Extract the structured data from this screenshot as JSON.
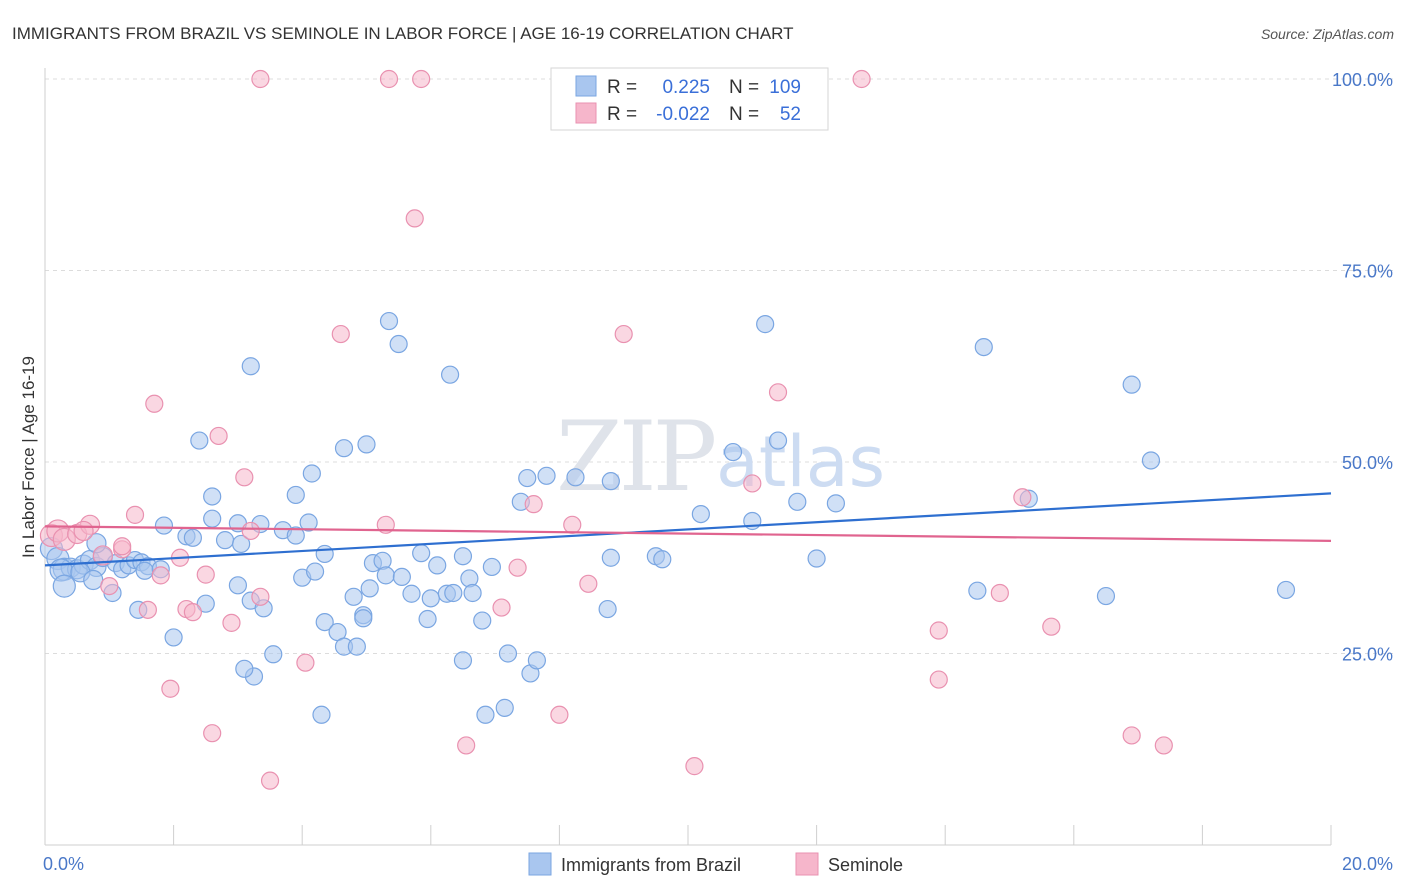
{
  "chart_data": {
    "type": "scatter",
    "title": "IMMIGRANTS FROM BRAZIL VS SEMINOLE IN LABOR FORCE | AGE 16-19 CORRELATION CHART",
    "source": "Source: ZipAtlas.com",
    "watermark": {
      "zip": "ZIP",
      "atlas": "atlas"
    },
    "xlabel": "",
    "ylabel": "In Labor Force | Age 16-19",
    "xlim": [
      0,
      20
    ],
    "ylim": [
      0,
      104
    ],
    "x_tick_labels": [
      {
        "value": 0,
        "label": "0.0%"
      },
      {
        "value": 20,
        "label": "20.0%"
      }
    ],
    "x_tick_marks": [
      0,
      2,
      4,
      6,
      8,
      10,
      12,
      14,
      16,
      18,
      20
    ],
    "y_ticks": [
      {
        "value": 25,
        "label": "25.0%"
      },
      {
        "value": 50,
        "label": "50.0%"
      },
      {
        "value": 75,
        "label": "75.0%"
      },
      {
        "value": 100,
        "label": "100.0%"
      }
    ],
    "grid": true,
    "legend": {
      "position": "top-center",
      "rows": [
        {
          "r_label": "R =",
          "r_value": "0.225",
          "n_label": "N =",
          "n_value": "109",
          "color": "#a9c6ef"
        },
        {
          "r_label": "R =",
          "r_value": "-0.022",
          "n_label": "N =",
          "n_value": "52",
          "color": "#f6b6cb"
        }
      ]
    },
    "series": [
      {
        "name": "Immigrants from Brazil",
        "color": "#a9c6ef",
        "stroke": "#7aa6e2",
        "trend_color": "#2e6fd0",
        "trend": [
          [
            0,
            36.5
          ],
          [
            20,
            45.9
          ]
        ],
        "points": [
          [
            0.1,
            38.7
          ],
          [
            0.2,
            37.4
          ],
          [
            0.3,
            36.0
          ],
          [
            0.4,
            36.2
          ],
          [
            0.5,
            36.0
          ],
          [
            0.6,
            36.6
          ],
          [
            0.7,
            37.2
          ],
          [
            0.8,
            36.3
          ],
          [
            0.9,
            37.6
          ],
          [
            1.1,
            36.8
          ],
          [
            1.2,
            36.0
          ],
          [
            1.3,
            36.5
          ],
          [
            1.4,
            37.2
          ],
          [
            1.5,
            36.9
          ],
          [
            1.6,
            36.4
          ],
          [
            0.25,
            35.9
          ],
          [
            0.3,
            33.8
          ],
          [
            0.55,
            35.6
          ],
          [
            0.75,
            34.6
          ],
          [
            1.05,
            32.9
          ],
          [
            1.55,
            35.8
          ],
          [
            1.8,
            36.0
          ],
          [
            0.8,
            39.4
          ],
          [
            1.45,
            30.7
          ],
          [
            1.85,
            41.7
          ],
          [
            2.2,
            40.3
          ],
          [
            2.6,
            42.6
          ],
          [
            3.0,
            42.0
          ],
          [
            3.35,
            41.9
          ],
          [
            3.7,
            41.1
          ],
          [
            3.9,
            40.4
          ],
          [
            4.1,
            42.1
          ],
          [
            2.3,
            40.1
          ],
          [
            2.8,
            39.8
          ],
          [
            3.05,
            39.3
          ],
          [
            2.6,
            45.5
          ],
          [
            3.9,
            45.7
          ],
          [
            4.15,
            48.5
          ],
          [
            2.0,
            27.1
          ],
          [
            2.5,
            31.5
          ],
          [
            3.0,
            33.9
          ],
          [
            3.2,
            31.9
          ],
          [
            3.4,
            30.9
          ],
          [
            3.55,
            24.9
          ],
          [
            3.25,
            22.0
          ],
          [
            4.0,
            34.9
          ],
          [
            4.2,
            35.7
          ],
          [
            4.35,
            38.0
          ],
          [
            4.35,
            29.1
          ],
          [
            4.55,
            27.8
          ],
          [
            4.65,
            25.9
          ],
          [
            4.8,
            32.4
          ],
          [
            4.95,
            30.0
          ],
          [
            4.95,
            29.6
          ],
          [
            5.05,
            33.5
          ],
          [
            5.1,
            36.8
          ],
          [
            5.25,
            37.1
          ],
          [
            5.3,
            35.2
          ],
          [
            5.55,
            35.0
          ],
          [
            5.7,
            32.8
          ],
          [
            5.85,
            38.1
          ],
          [
            5.95,
            29.5
          ],
          [
            6.0,
            32.2
          ],
          [
            6.25,
            32.8
          ],
          [
            6.35,
            32.9
          ],
          [
            6.1,
            36.5
          ],
          [
            6.5,
            37.7
          ],
          [
            6.5,
            24.1
          ],
          [
            6.6,
            34.8
          ],
          [
            6.65,
            32.9
          ],
          [
            6.8,
            29.3
          ],
          [
            6.85,
            17.0
          ],
          [
            6.95,
            36.3
          ],
          [
            7.15,
            17.9
          ],
          [
            7.2,
            25.0
          ],
          [
            7.55,
            22.4
          ],
          [
            7.65,
            24.1
          ],
          [
            7.4,
            44.8
          ],
          [
            7.5,
            47.9
          ],
          [
            7.8,
            48.2
          ],
          [
            8.25,
            48.0
          ],
          [
            8.75,
            30.8
          ],
          [
            8.8,
            37.5
          ],
          [
            9.5,
            37.7
          ],
          [
            9.6,
            37.3
          ],
          [
            10.2,
            43.2
          ],
          [
            10.7,
            51.3
          ],
          [
            11.0,
            42.3
          ],
          [
            11.4,
            52.8
          ],
          [
            11.7,
            44.8
          ],
          [
            12.0,
            37.4
          ],
          [
            4.85,
            25.9
          ],
          [
            5.5,
            65.4
          ],
          [
            6.3,
            61.4
          ],
          [
            4.3,
            17.0
          ],
          [
            5.0,
            52.3
          ],
          [
            3.2,
            62.5
          ],
          [
            5.35,
            68.4
          ],
          [
            11.2,
            68.0
          ],
          [
            14.6,
            65.0
          ],
          [
            15.3,
            45.2
          ],
          [
            16.9,
            60.1
          ],
          [
            17.2,
            50.2
          ],
          [
            14.5,
            33.2
          ],
          [
            16.5,
            32.5
          ],
          [
            19.3,
            33.3
          ],
          [
            3.1,
            23.0
          ],
          [
            4.65,
            51.8
          ],
          [
            2.4,
            52.8
          ],
          [
            8.8,
            47.5
          ],
          [
            12.3,
            44.6
          ]
        ],
        "point_sizes_note": "larger markers near x=0"
      },
      {
        "name": "Seminole",
        "color": "#f6b6cb",
        "stroke": "#e991b0",
        "trend_color": "#e0648f",
        "trend": [
          [
            0,
            41.6
          ],
          [
            20,
            39.7
          ]
        ],
        "points": [
          [
            0.1,
            40.4
          ],
          [
            0.2,
            41.0
          ],
          [
            0.3,
            39.9
          ],
          [
            0.5,
            40.6
          ],
          [
            0.7,
            41.8
          ],
          [
            0.9,
            37.8
          ],
          [
            1.0,
            33.8
          ],
          [
            1.2,
            38.6
          ],
          [
            1.4,
            43.1
          ],
          [
            1.6,
            30.7
          ],
          [
            1.7,
            57.6
          ],
          [
            1.8,
            35.2
          ],
          [
            2.1,
            37.5
          ],
          [
            2.2,
            30.8
          ],
          [
            1.95,
            20.4
          ],
          [
            2.3,
            30.4
          ],
          [
            2.5,
            35.3
          ],
          [
            2.6,
            14.6
          ],
          [
            2.7,
            53.4
          ],
          [
            2.9,
            29.0
          ],
          [
            3.1,
            48.0
          ],
          [
            3.2,
            41.0
          ],
          [
            3.35,
            32.4
          ],
          [
            3.5,
            8.4
          ],
          [
            4.05,
            23.8
          ],
          [
            4.6,
            66.7
          ],
          [
            5.3,
            41.8
          ],
          [
            5.35,
            100.0
          ],
          [
            5.85,
            100.0
          ],
          [
            5.75,
            81.8
          ],
          [
            3.35,
            100.0
          ],
          [
            7.1,
            31.0
          ],
          [
            7.35,
            36.2
          ],
          [
            7.6,
            44.5
          ],
          [
            8.0,
            17.0
          ],
          [
            8.45,
            34.1
          ],
          [
            8.2,
            41.8
          ],
          [
            9.0,
            66.7
          ],
          [
            6.55,
            13.0
          ],
          [
            10.1,
            10.3
          ],
          [
            11.0,
            47.2
          ],
          [
            11.4,
            59.1
          ],
          [
            12.7,
            100.0
          ],
          [
            13.9,
            21.6
          ],
          [
            13.9,
            28.0
          ],
          [
            15.2,
            45.4
          ],
          [
            14.85,
            32.9
          ],
          [
            15.65,
            28.5
          ],
          [
            16.9,
            14.3
          ],
          [
            17.4,
            13.0
          ],
          [
            0.6,
            41.0
          ],
          [
            1.2,
            39.0
          ]
        ]
      }
    ]
  }
}
